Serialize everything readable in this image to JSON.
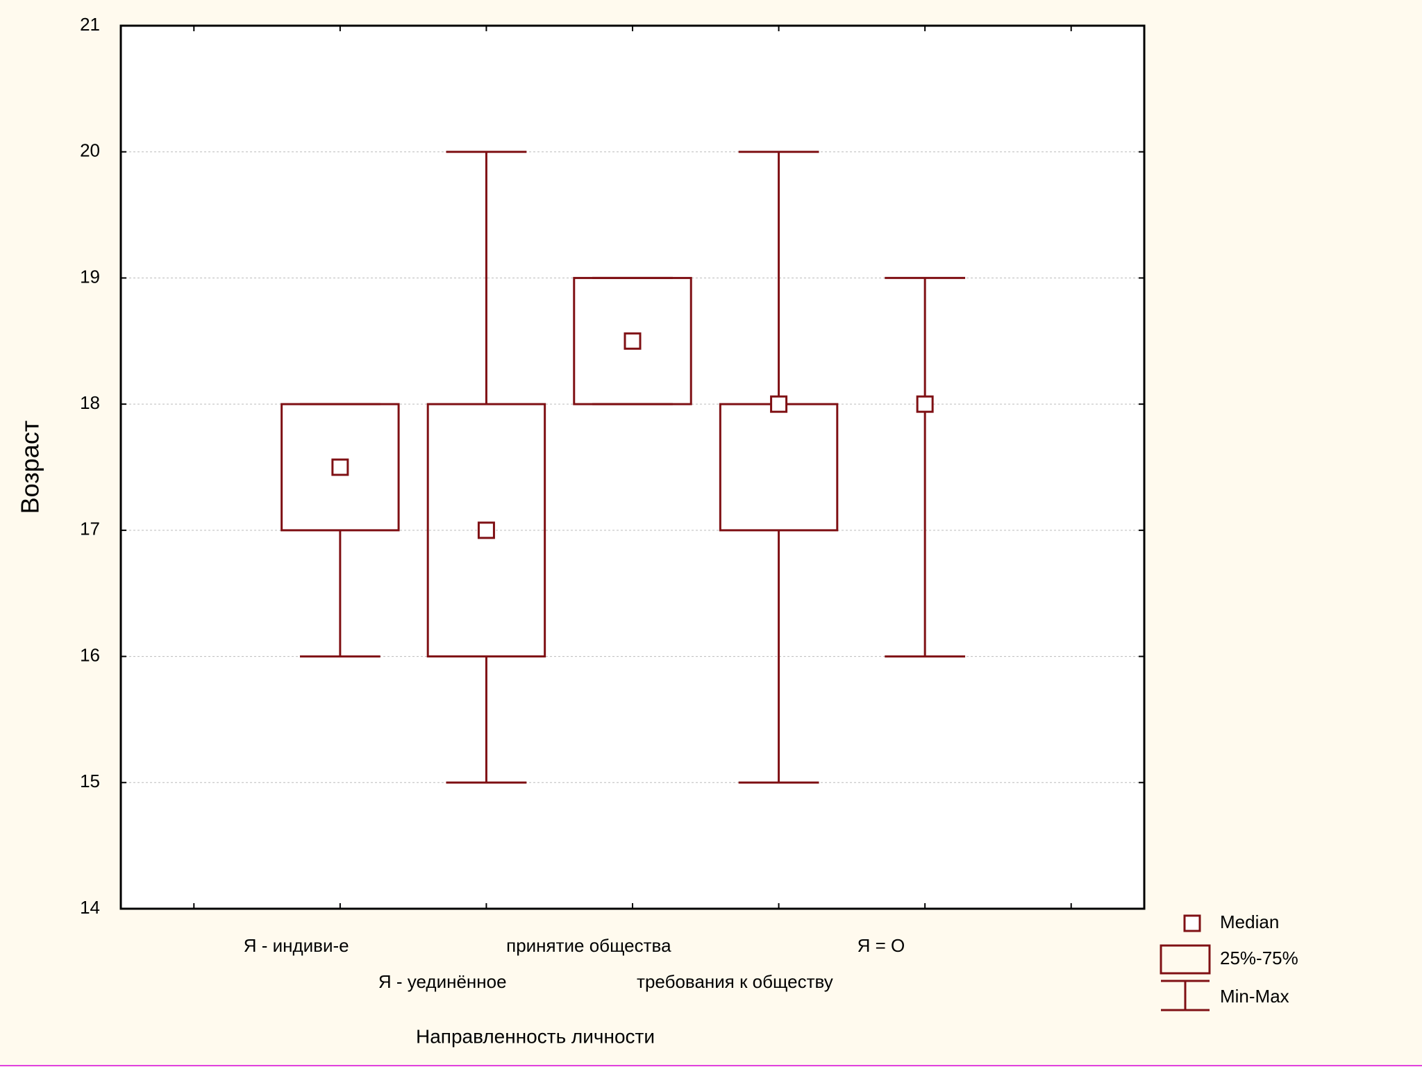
{
  "chart_data": {
    "type": "box",
    "x_label": "Направленность личности",
    "y_label": "Возраст",
    "categories": [
      null,
      "Я - индиви-е",
      "Я - уединённое",
      "принятие общества",
      "требования к обществу",
      "Я = О",
      null
    ],
    "series": [
      {
        "color": "#7f1014",
        "min": [
          null,
          16,
          15,
          18,
          15,
          16,
          null
        ],
        "q1": [
          null,
          17,
          16,
          18,
          17,
          18,
          null
        ],
        "median": [
          null,
          17.5,
          17,
          18.5,
          18,
          18,
          null
        ],
        "q3": [
          null,
          18,
          18,
          19,
          18,
          18,
          null
        ],
        "max": [
          null,
          18,
          20,
          19,
          20,
          19,
          null
        ]
      }
    ],
    "ylim": [
      14,
      21
    ],
    "yticks": [
      14,
      15,
      16,
      17,
      18,
      19,
      20,
      21
    ],
    "grid": true,
    "legend": {
      "position": "bottom-right",
      "entries": [
        "Median",
        "25%-75%",
        "Min-Max"
      ]
    }
  }
}
